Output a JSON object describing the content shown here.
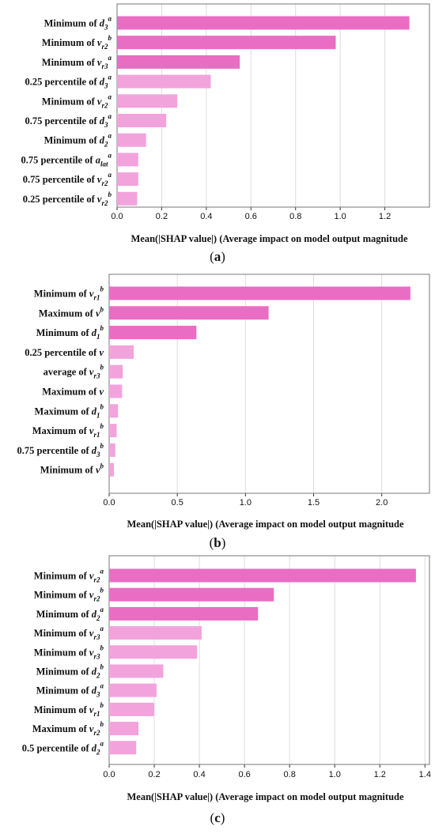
{
  "colors": {
    "strong": "#ea6dc4",
    "light": "#f2a3dc",
    "frame": "#777777",
    "grid": "#dddddd"
  },
  "chart_data": [
    {
      "type": "bar",
      "panel_label": "a",
      "xlabel": "Mean(|SHAP value|)  (Average impact on model output magnitude",
      "xlim": [
        0,
        1.4
      ],
      "xticks": [
        "0.0",
        "0.2",
        "0.4",
        "0.6",
        "0.8",
        "1.0",
        "1.2"
      ],
      "categories": [
        {
          "text": "Minimum of ",
          "var": "d",
          "sub": "3",
          "sup": "a"
        },
        {
          "text": "Minimum of ",
          "var": "v",
          "sub": "r2",
          "sup": "b"
        },
        {
          "text": "Minimum of ",
          "var": "v",
          "sub": "r3",
          "sup": "a"
        },
        {
          "text": "0.25 percentile of ",
          "var": "d",
          "sub": "3",
          "sup": "a"
        },
        {
          "text": "Minimum of ",
          "var": "v",
          "sub": "r2",
          "sup": "a"
        },
        {
          "text": "0.75 percentile of ",
          "var": "d",
          "sub": "3",
          "sup": "a"
        },
        {
          "text": "Minimum of ",
          "var": "d",
          "sub": "2",
          "sup": "a"
        },
        {
          "text": "0.75 percentile of ",
          "var": "a",
          "sub": "lat",
          "sup": "a"
        },
        {
          "text": "0.75 percentile of ",
          "var": "v",
          "sub": "r2",
          "sup": "a"
        },
        {
          "text": "0.25 percentile of ",
          "var": "v",
          "sub": "r2",
          "sup": "b"
        }
      ],
      "values": [
        1.31,
        0.98,
        0.55,
        0.42,
        0.27,
        0.22,
        0.13,
        0.095,
        0.095,
        0.09
      ],
      "strong_count": 3
    },
    {
      "type": "bar",
      "panel_label": "b",
      "xlabel": "Mean(|SHAP value|)  (Average impact on model output magnitude",
      "xlim": [
        0,
        2.35
      ],
      "xticks": [
        "0.0",
        "0.5",
        "1.0",
        "1.5",
        "2.0"
      ],
      "categories": [
        {
          "text": "Minimum of ",
          "var": "v",
          "sub": "r1",
          "sup": "b"
        },
        {
          "text": "Maximum of ",
          "var": "v",
          "sub": "",
          "sup": "b"
        },
        {
          "text": "Minimum of ",
          "var": "d",
          "sub": "1",
          "sup": "b"
        },
        {
          "text": "0.25 percentile of ",
          "var": "v",
          "sub": "",
          "sup": ""
        },
        {
          "text": "average of ",
          "var": "v",
          "sub": "r3",
          "sup": "b"
        },
        {
          "text": "Maximum of ",
          "var": "v",
          "sub": "",
          "sup": ""
        },
        {
          "text": "Maximum of ",
          "var": "d",
          "sub": "1",
          "sup": "b"
        },
        {
          "text": "Maximum of ",
          "var": "v",
          "sub": "r1",
          "sup": "b"
        },
        {
          "text": "0.75 percentile of ",
          "var": "d",
          "sub": "3",
          "sup": "b"
        },
        {
          "text": "Minimum of ",
          "var": "v",
          "sub": "",
          "sup": "b"
        }
      ],
      "values": [
        2.21,
        1.17,
        0.64,
        0.18,
        0.1,
        0.095,
        0.065,
        0.055,
        0.045,
        0.035
      ],
      "strong_count": 3
    },
    {
      "type": "bar",
      "panel_label": "c",
      "xlabel": "Mean(|SHAP value|)  (Average impact on model output magnitude",
      "xlim": [
        0,
        1.42
      ],
      "xticks": [
        "0.0",
        "0.2",
        "0.4",
        "0.6",
        "0.8",
        "1.0",
        "1.2",
        "1.4"
      ],
      "categories": [
        {
          "text": "Minimum of ",
          "var": "v",
          "sub": "r2",
          "sup": "a"
        },
        {
          "text": "Minimum of ",
          "var": "v",
          "sub": "r2",
          "sup": "b"
        },
        {
          "text": "Minimum of ",
          "var": "d",
          "sub": "2",
          "sup": "a"
        },
        {
          "text": "Minimum of ",
          "var": "v",
          "sub": "r3",
          "sup": "a"
        },
        {
          "text": "Minimum of ",
          "var": "v",
          "sub": "r3",
          "sup": "b"
        },
        {
          "text": "Minimum of ",
          "var": "d",
          "sub": "2",
          "sup": "b"
        },
        {
          "text": "Minimum of ",
          "var": "d",
          "sub": "3",
          "sup": "a"
        },
        {
          "text": "Minimum of ",
          "var": "v",
          "sub": "r1",
          "sup": "b"
        },
        {
          "text": "Maximum of ",
          "var": "v",
          "sub": "r2",
          "sup": "b"
        },
        {
          "text": "0.5 percentile of ",
          "var": "d",
          "sub": "2",
          "sup": "a"
        }
      ],
      "values": [
        1.36,
        0.73,
        0.66,
        0.41,
        0.39,
        0.24,
        0.21,
        0.2,
        0.13,
        0.12
      ],
      "strong_count": 3
    }
  ]
}
